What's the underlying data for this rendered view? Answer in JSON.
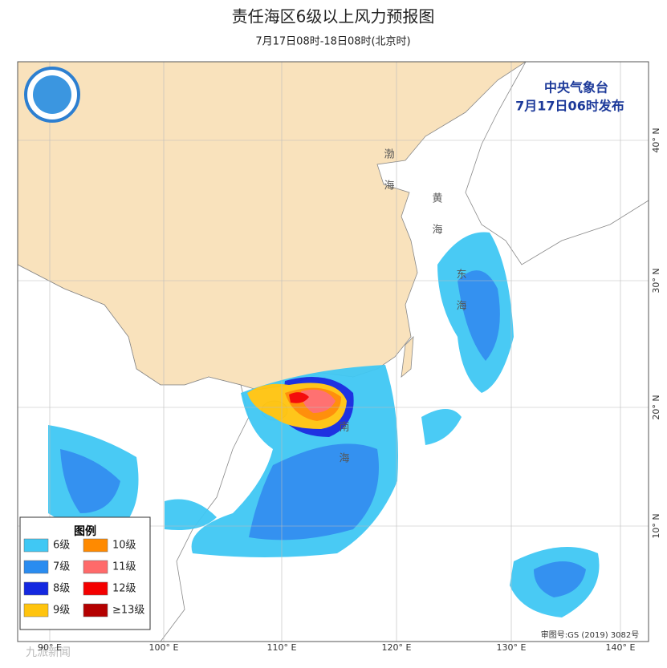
{
  "header": {
    "title": "责任海区6级以上风力预报图",
    "subtitle": "7月17日08时-18日08时(北京时)"
  },
  "issuer": {
    "name": "中央气象台",
    "time": "7月17日06时发布"
  },
  "legend": {
    "title": "图例",
    "items": [
      {
        "label": "6级",
        "color": "#40c8f4"
      },
      {
        "label": "10级",
        "color": "#ff8a00"
      },
      {
        "label": "7级",
        "color": "#2a8cf0"
      },
      {
        "label": "11级",
        "color": "#ff6a6a"
      },
      {
        "label": "8级",
        "color": "#1428e0"
      },
      {
        "label": "12级",
        "color": "#f40000"
      },
      {
        "label": "9级",
        "color": "#ffc40e"
      },
      {
        "label": "≥13级",
        "color": "#b40000"
      }
    ]
  },
  "lon_labels": [
    "90° E",
    "100° E",
    "110° E",
    "120° E",
    "130° E",
    "140° E"
  ],
  "lat_labels": [
    "40° N",
    "30° N",
    "20° N",
    "10° N"
  ],
  "sea_labels": [
    "渤海",
    "黄海",
    "东海",
    "南海"
  ],
  "footer": {
    "approval": "审图号:GS (2019) 3082号"
  },
  "watermark": "九派新闻"
}
